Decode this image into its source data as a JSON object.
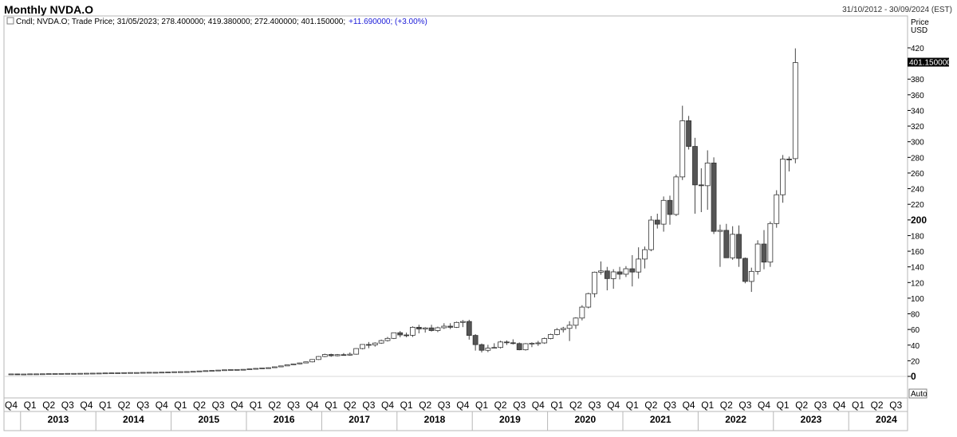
{
  "header": {
    "title": "Monthly NVDA.O",
    "date_range": "31/10/2012 - 30/09/2024 (EST)"
  },
  "legend": {
    "text": "Cndl; NVDA.O; Trade Price; 31/05/2023; 278.400000; 419.380000; 272.400000; 401.150000;",
    "change": "+11.690000; (+3.00%)"
  },
  "axis": {
    "price_label": "Price",
    "currency_label": "USD",
    "last_price_label": "401.150000",
    "auto_label": "Auto"
  },
  "chart_data": {
    "type": "candlestick",
    "title": "Monthly NVDA.O",
    "ylabel": "Price USD",
    "ylim": [
      -22,
      440
    ],
    "yticks": [
      0,
      20,
      40,
      60,
      80,
      100,
      120,
      140,
      160,
      180,
      200,
      220,
      240,
      260,
      280,
      300,
      320,
      340,
      360,
      380,
      400,
      420
    ],
    "yticks_bold": [
      0,
      200
    ],
    "last_price": 401.15,
    "x_start": "Q4 2012",
    "x_end": "Q3 2024",
    "quarter_labels": [
      "Q4",
      "Q1",
      "Q2",
      "Q3",
      "Q4",
      "Q1",
      "Q2",
      "Q3",
      "Q4",
      "Q1",
      "Q2",
      "Q3",
      "Q4",
      "Q1",
      "Q2",
      "Q3",
      "Q4",
      "Q1",
      "Q2",
      "Q3",
      "Q4",
      "Q1",
      "Q2",
      "Q3",
      "Q4",
      "Q1",
      "Q2",
      "Q3",
      "Q4",
      "Q1",
      "Q2",
      "Q3",
      "Q4",
      "Q1",
      "Q2",
      "Q3",
      "Q4",
      "Q1",
      "Q2",
      "Q3",
      "Q4",
      "Q1",
      "Q2",
      "Q3",
      "Q4",
      "Q1",
      "Q2",
      "Q3"
    ],
    "years": [
      "2013",
      "2014",
      "2015",
      "2016",
      "2017",
      "2018",
      "2019",
      "2020",
      "2021",
      "2022",
      "2023",
      "2024"
    ],
    "candles": [
      {
        "o": 3.0,
        "h": 3.2,
        "l": 2.9,
        "c": 3.1
      },
      {
        "o": 3.1,
        "h": 3.2,
        "l": 2.9,
        "c": 3.0
      },
      {
        "o": 3.0,
        "h": 3.1,
        "l": 2.8,
        "c": 3.0
      },
      {
        "o": 3.0,
        "h": 3.3,
        "l": 3.0,
        "c": 3.2
      },
      {
        "o": 3.2,
        "h": 3.3,
        "l": 3.1,
        "c": 3.2
      },
      {
        "o": 3.2,
        "h": 3.4,
        "l": 3.2,
        "c": 3.3
      },
      {
        "o": 3.3,
        "h": 3.6,
        "l": 3.3,
        "c": 3.5
      },
      {
        "o": 3.5,
        "h": 3.8,
        "l": 3.4,
        "c": 3.6
      },
      {
        "o": 3.6,
        "h": 3.8,
        "l": 3.6,
        "c": 3.7
      },
      {
        "o": 3.7,
        "h": 3.9,
        "l": 3.6,
        "c": 3.8
      },
      {
        "o": 3.8,
        "h": 3.9,
        "l": 3.7,
        "c": 3.8
      },
      {
        "o": 3.8,
        "h": 4.0,
        "l": 3.7,
        "c": 3.9
      },
      {
        "o": 3.9,
        "h": 4.2,
        "l": 3.8,
        "c": 4.0
      },
      {
        "o": 4.0,
        "h": 4.2,
        "l": 3.8,
        "c": 4.1
      },
      {
        "o": 4.1,
        "h": 4.3,
        "l": 3.9,
        "c": 4.2
      },
      {
        "o": 4.2,
        "h": 4.5,
        "l": 4.1,
        "c": 4.4
      },
      {
        "o": 4.4,
        "h": 4.7,
        "l": 4.3,
        "c": 4.5
      },
      {
        "o": 4.5,
        "h": 4.8,
        "l": 4.4,
        "c": 4.6
      },
      {
        "o": 4.6,
        "h": 4.9,
        "l": 4.5,
        "c": 4.8
      },
      {
        "o": 4.8,
        "h": 5.0,
        "l": 4.7,
        "c": 4.9
      },
      {
        "o": 4.9,
        "h": 5.1,
        "l": 4.7,
        "c": 4.9
      },
      {
        "o": 4.9,
        "h": 5.2,
        "l": 4.8,
        "c": 5.1
      },
      {
        "o": 5.1,
        "h": 5.3,
        "l": 4.9,
        "c": 5.2
      },
      {
        "o": 5.2,
        "h": 5.4,
        "l": 5.0,
        "c": 5.2
      },
      {
        "o": 5.2,
        "h": 5.5,
        "l": 5.1,
        "c": 5.4
      },
      {
        "o": 5.4,
        "h": 5.7,
        "l": 5.3,
        "c": 5.6
      },
      {
        "o": 5.6,
        "h": 6.0,
        "l": 5.5,
        "c": 5.9
      },
      {
        "o": 5.9,
        "h": 6.2,
        "l": 5.7,
        "c": 6.0
      },
      {
        "o": 6.0,
        "h": 6.3,
        "l": 5.8,
        "c": 6.1
      },
      {
        "o": 6.1,
        "h": 6.5,
        "l": 6.0,
        "c": 6.4
      },
      {
        "o": 6.4,
        "h": 7.0,
        "l": 6.3,
        "c": 6.9
      },
      {
        "o": 6.9,
        "h": 7.4,
        "l": 6.8,
        "c": 7.3
      },
      {
        "o": 7.3,
        "h": 7.8,
        "l": 7.1,
        "c": 7.6
      },
      {
        "o": 7.6,
        "h": 8.2,
        "l": 7.4,
        "c": 8.0
      },
      {
        "o": 8.0,
        "h": 8.6,
        "l": 7.9,
        "c": 8.4
      },
      {
        "o": 8.4,
        "h": 8.9,
        "l": 8.2,
        "c": 8.7
      },
      {
        "o": 8.7,
        "h": 9.0,
        "l": 8.4,
        "c": 8.8
      },
      {
        "o": 8.8,
        "h": 9.2,
        "l": 8.6,
        "c": 9.0
      },
      {
        "o": 9.0,
        "h": 9.8,
        "l": 8.9,
        "c": 9.6
      },
      {
        "o": 9.6,
        "h": 10.4,
        "l": 9.4,
        "c": 10.2
      },
      {
        "o": 10.2,
        "h": 11.0,
        "l": 10.0,
        "c": 10.8
      },
      {
        "o": 10.8,
        "h": 11.4,
        "l": 10.4,
        "c": 11.1
      },
      {
        "o": 11.1,
        "h": 12.4,
        "l": 11.0,
        "c": 12.2
      },
      {
        "o": 12.2,
        "h": 13.6,
        "l": 12.0,
        "c": 13.4
      },
      {
        "o": 13.4,
        "h": 15.0,
        "l": 13.2,
        "c": 14.8
      },
      {
        "o": 14.8,
        "h": 16.4,
        "l": 14.4,
        "c": 16.0
      },
      {
        "o": 16.0,
        "h": 17.6,
        "l": 15.4,
        "c": 17.2
      },
      {
        "o": 17.2,
        "h": 19.0,
        "l": 16.8,
        "c": 18.6
      },
      {
        "o": 18.6,
        "h": 22.0,
        "l": 18.0,
        "c": 21.6
      },
      {
        "o": 21.6,
        "h": 26.0,
        "l": 21.0,
        "c": 25.4
      },
      {
        "o": 25.4,
        "h": 29.0,
        "l": 24.6,
        "c": 28.0
      },
      {
        "o": 28.0,
        "h": 29.0,
        "l": 25.0,
        "c": 26.4
      },
      {
        "o": 26.4,
        "h": 28.6,
        "l": 25.6,
        "c": 27.8
      },
      {
        "o": 27.8,
        "h": 29.8,
        "l": 26.8,
        "c": 27.2
      },
      {
        "o": 27.2,
        "h": 30.6,
        "l": 26.4,
        "c": 28.4
      },
      {
        "o": 28.4,
        "h": 36.0,
        "l": 27.8,
        "c": 35.6
      },
      {
        "o": 35.6,
        "h": 41.0,
        "l": 34.6,
        "c": 40.8
      },
      {
        "o": 40.8,
        "h": 44.0,
        "l": 36.0,
        "c": 40.2
      },
      {
        "o": 40.2,
        "h": 43.6,
        "l": 38.0,
        "c": 42.6
      },
      {
        "o": 42.6,
        "h": 47.0,
        "l": 41.6,
        "c": 45.8
      },
      {
        "o": 45.8,
        "h": 50.4,
        "l": 44.6,
        "c": 48.6
      },
      {
        "o": 48.6,
        "h": 56.0,
        "l": 47.8,
        "c": 55.8
      },
      {
        "o": 55.8,
        "h": 58.0,
        "l": 50.0,
        "c": 53.0
      },
      {
        "o": 53.0,
        "h": 56.0,
        "l": 50.0,
        "c": 52.6
      },
      {
        "o": 52.6,
        "h": 64.0,
        "l": 50.4,
        "c": 62.8
      },
      {
        "o": 62.8,
        "h": 66.0,
        "l": 55.0,
        "c": 60.6
      },
      {
        "o": 60.6,
        "h": 63.0,
        "l": 56.0,
        "c": 62.0
      },
      {
        "o": 62.0,
        "h": 66.0,
        "l": 57.4,
        "c": 58.6
      },
      {
        "o": 58.6,
        "h": 63.6,
        "l": 56.6,
        "c": 62.2
      },
      {
        "o": 62.2,
        "h": 68.0,
        "l": 60.6,
        "c": 64.2
      },
      {
        "o": 64.2,
        "h": 68.0,
        "l": 60.4,
        "c": 62.8
      },
      {
        "o": 62.8,
        "h": 70.0,
        "l": 62.0,
        "c": 69.0
      },
      {
        "o": 69.0,
        "h": 72.0,
        "l": 63.0,
        "c": 70.2
      },
      {
        "o": 70.2,
        "h": 72.4,
        "l": 47.0,
        "c": 52.4
      },
      {
        "o": 52.4,
        "h": 54.0,
        "l": 33.0,
        "c": 40.6
      },
      {
        "o": 40.6,
        "h": 42.0,
        "l": 30.6,
        "c": 33.4
      },
      {
        "o": 33.4,
        "h": 40.4,
        "l": 31.0,
        "c": 36.2
      },
      {
        "o": 36.2,
        "h": 42.4,
        "l": 35.8,
        "c": 37.0
      },
      {
        "o": 37.0,
        "h": 45.6,
        "l": 35.6,
        "c": 44.0
      },
      {
        "o": 44.0,
        "h": 46.0,
        "l": 40.2,
        "c": 43.0
      },
      {
        "o": 43.0,
        "h": 47.4,
        "l": 40.8,
        "c": 42.0
      },
      {
        "o": 42.0,
        "h": 43.4,
        "l": 33.4,
        "c": 34.0
      },
      {
        "o": 34.0,
        "h": 42.6,
        "l": 33.0,
        "c": 41.8
      },
      {
        "o": 41.8,
        "h": 43.6,
        "l": 37.4,
        "c": 42.4
      },
      {
        "o": 42.4,
        "h": 45.4,
        "l": 39.0,
        "c": 42.8
      },
      {
        "o": 42.8,
        "h": 49.6,
        "l": 41.6,
        "c": 48.4
      },
      {
        "o": 48.4,
        "h": 54.6,
        "l": 47.4,
        "c": 53.6
      },
      {
        "o": 53.6,
        "h": 61.8,
        "l": 52.6,
        "c": 59.8
      },
      {
        "o": 59.8,
        "h": 63.4,
        "l": 56.2,
        "c": 61.4
      },
      {
        "o": 61.4,
        "h": 70.6,
        "l": 45.2,
        "c": 65.4
      },
      {
        "o": 65.4,
        "h": 75.6,
        "l": 60.6,
        "c": 74.6
      },
      {
        "o": 74.6,
        "h": 91.0,
        "l": 71.6,
        "c": 88.6
      },
      {
        "o": 88.6,
        "h": 107.0,
        "l": 87.0,
        "c": 105.8
      },
      {
        "o": 105.8,
        "h": 134.0,
        "l": 101.0,
        "c": 133.2
      },
      {
        "o": 133.2,
        "h": 147.0,
        "l": 130.0,
        "c": 134.8
      },
      {
        "o": 134.8,
        "h": 140.0,
        "l": 110.0,
        "c": 125.0
      },
      {
        "o": 125.0,
        "h": 137.0,
        "l": 112.0,
        "c": 133.6
      },
      {
        "o": 133.6,
        "h": 140.0,
        "l": 124.0,
        "c": 130.6
      },
      {
        "o": 130.6,
        "h": 141.0,
        "l": 127.0,
        "c": 137.6
      },
      {
        "o": 137.6,
        "h": 155.0,
        "l": 115.0,
        "c": 133.4
      },
      {
        "o": 133.4,
        "h": 165.0,
        "l": 125.0,
        "c": 150.0
      },
      {
        "o": 150.0,
        "h": 166.0,
        "l": 138.0,
        "c": 162.0
      },
      {
        "o": 162.0,
        "h": 205.0,
        "l": 160.0,
        "c": 199.8
      },
      {
        "o": 199.8,
        "h": 208.0,
        "l": 189.0,
        "c": 194.6
      },
      {
        "o": 194.6,
        "h": 230.0,
        "l": 185.0,
        "c": 225.0
      },
      {
        "o": 225.0,
        "h": 231.0,
        "l": 194.0,
        "c": 207.0
      },
      {
        "o": 207.0,
        "h": 258.0,
        "l": 205.0,
        "c": 255.0
      },
      {
        "o": 255.0,
        "h": 346.0,
        "l": 251.0,
        "c": 326.8
      },
      {
        "o": 326.8,
        "h": 333.0,
        "l": 290.0,
        "c": 294.0
      },
      {
        "o": 294.0,
        "h": 305.0,
        "l": 208.0,
        "c": 244.8
      },
      {
        "o": 244.8,
        "h": 266.0,
        "l": 210.0,
        "c": 243.8
      },
      {
        "o": 243.8,
        "h": 289.0,
        "l": 213.0,
        "c": 272.8
      },
      {
        "o": 272.8,
        "h": 280.0,
        "l": 182.0,
        "c": 185.4
      },
      {
        "o": 185.4,
        "h": 194.0,
        "l": 140.0,
        "c": 186.7
      },
      {
        "o": 186.7,
        "h": 195.0,
        "l": 155.0,
        "c": 151.6
      },
      {
        "o": 151.6,
        "h": 192.0,
        "l": 149.0,
        "c": 181.6
      },
      {
        "o": 181.6,
        "h": 193.0,
        "l": 140.0,
        "c": 150.9
      },
      {
        "o": 150.9,
        "h": 152.0,
        "l": 119.0,
        "c": 121.4
      },
      {
        "o": 121.4,
        "h": 139.0,
        "l": 108.0,
        "c": 134.2
      },
      {
        "o": 134.2,
        "h": 174.0,
        "l": 130.0,
        "c": 169.2
      },
      {
        "o": 169.2,
        "h": 187.0,
        "l": 137.0,
        "c": 146.1
      },
      {
        "o": 146.1,
        "h": 198.0,
        "l": 140.0,
        "c": 195.4
      },
      {
        "o": 195.4,
        "h": 238.0,
        "l": 190.0,
        "c": 232.2
      },
      {
        "o": 232.2,
        "h": 283.0,
        "l": 222.0,
        "c": 277.8
      },
      {
        "o": 277.8,
        "h": 281.0,
        "l": 262.0,
        "c": 277.5
      },
      {
        "o": 278.4,
        "h": 419.38,
        "l": 272.4,
        "c": 401.15
      }
    ]
  }
}
